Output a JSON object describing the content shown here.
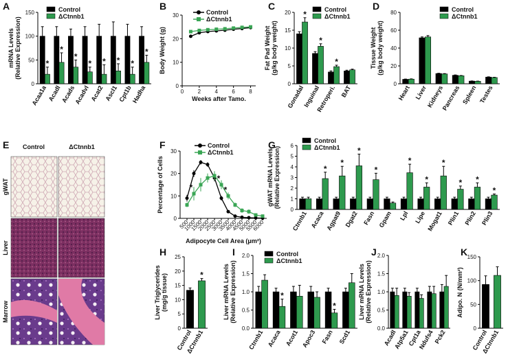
{
  "chart_data": [
    {
      "panel": "A",
      "type": "bar",
      "ylabel": [
        "mRNA Levels",
        "(Relative Expression)"
      ],
      "categories": [
        "Acaa1a",
        "Acadl",
        "Acads",
        "Acadvl",
        "Acat2",
        "Ascl1",
        "Cpt1b",
        "Hadha"
      ],
      "series": [
        {
          "name": "Control",
          "color": "#000000",
          "values": [
            100,
            100,
            100,
            100,
            100,
            100,
            100,
            100
          ],
          "errors": [
            20,
            20,
            15,
            20,
            25,
            30,
            25,
            20
          ]
        },
        {
          "name": "ΔCtnnb1",
          "color": "#2e9a4e",
          "values": [
            20,
            45,
            35,
            25,
            20,
            27,
            20,
            45
          ],
          "errors": [
            15,
            20,
            15,
            10,
            20,
            15,
            15,
            15
          ],
          "annotations": [
            "*",
            "*",
            "*",
            "*",
            "*",
            "*",
            "*",
            "*"
          ]
        }
      ],
      "ylim": [
        0,
        150
      ],
      "yticks": [
        0,
        50,
        100,
        150
      ],
      "legend": true
    },
    {
      "panel": "B",
      "type": "line",
      "ylabel": [
        "Body Weight (g)"
      ],
      "xlabel": "Weeks after Tamo.",
      "x": [
        1,
        2,
        3,
        4,
        5,
        6,
        7,
        8
      ],
      "series": [
        {
          "name": "Control",
          "color": "#000000",
          "marker": "circle",
          "values": [
            21,
            22.5,
            23,
            23.3,
            23.6,
            24,
            24.3,
            24.7
          ]
        },
        {
          "name": "ΔCtnnb1",
          "color": "#3aa655",
          "marker": "square",
          "values": [
            23,
            23.5,
            23.8,
            24,
            24.2,
            24.5,
            24.8,
            25
          ]
        }
      ],
      "xlim": [
        0,
        8.6
      ],
      "xticks": [
        0,
        2,
        4,
        6,
        8
      ],
      "ylim": [
        0,
        30
      ],
      "yticks": [
        0,
        10,
        20,
        30
      ],
      "legend": true
    },
    {
      "panel": "C",
      "type": "bar",
      "ylabel": [
        "Fat Pad Weight",
        "(g/kg body weight)"
      ],
      "categories": [
        "Gonadal",
        "Inguinal",
        "Retroperi.",
        "BAT"
      ],
      "series": [
        {
          "name": "Control",
          "color": "#000000",
          "values": [
            14,
            8.5,
            3.3,
            3.6
          ],
          "errors": [
            0.6,
            0.5,
            0.3,
            0.2
          ]
        },
        {
          "name": "ΔCtnnb1",
          "color": "#2e9a4e",
          "values": [
            17.3,
            10.5,
            4.8,
            3.9
          ],
          "errors": [
            1.2,
            0.7,
            0.4,
            0.2
          ],
          "annotations": [
            "*",
            "*",
            "*",
            null
          ]
        }
      ],
      "ylim": [
        0,
        20
      ],
      "yticks": [
        0,
        5,
        10,
        15,
        20
      ],
      "legend": true
    },
    {
      "panel": "D",
      "type": "bar",
      "ylabel": [
        "Tissue Weight",
        "(g/kg body weight)"
      ],
      "categories": [
        "Heart",
        "Liver",
        "Kidneys",
        "Pancreas",
        "Spleen",
        "Testes"
      ],
      "series": [
        {
          "name": "Control",
          "color": "#000000",
          "values": [
            5,
            51.5,
            11.5,
            9.5,
            3,
            7.5
          ],
          "errors": [
            0.3,
            1,
            0.3,
            0.4,
            0.2,
            0.3
          ]
        },
        {
          "name": "ΔCtnnb1",
          "color": "#2e9a4e",
          "values": [
            5.2,
            52.5,
            11,
            9,
            2.8,
            7
          ],
          "errors": [
            0.3,
            1.5,
            0.4,
            0.3,
            0.2,
            0.3
          ]
        }
      ],
      "ylim": [
        0,
        80
      ],
      "yticks": [
        0,
        20,
        40,
        60,
        80
      ],
      "legend": true
    },
    {
      "panel": "F",
      "type": "line",
      "ylabel": [
        "Percentage of Cells"
      ],
      "xlabel": "Adipocyte Cell Area (μm²)",
      "x": [
        500,
        1000,
        1500,
        2000,
        2500,
        3000,
        3500,
        4000,
        4500,
        5000,
        5500,
        6000
      ],
      "series": [
        {
          "name": "Control",
          "color": "#000000",
          "marker": "circle",
          "values": [
            9,
            20,
            25,
            24,
            18,
            9,
            3,
            1,
            0.5,
            0.3,
            0.2,
            0.1
          ],
          "errors": [
            1.5,
            1.5,
            1,
            1,
            1.5,
            1,
            0.5,
            0.3,
            0.2,
            0.1,
            0.1,
            0.1
          ]
        },
        {
          "name": "ΔCtnnb1",
          "color": "#3aa655",
          "marker": "square",
          "values": [
            6,
            11,
            15,
            18,
            19,
            15,
            10,
            6,
            3.5,
            3,
            1.5,
            1
          ],
          "errors": [
            1,
            3,
            3,
            2,
            2,
            2,
            1.5,
            1,
            1,
            1,
            0.5,
            0.5
          ],
          "annotations": [
            null,
            "*",
            null,
            null,
            null,
            "*",
            "*",
            null,
            null,
            null,
            null,
            null
          ]
        }
      ],
      "xlim": [
        0,
        6300
      ],
      "xticks": [
        500,
        1000,
        1500,
        2000,
        2500,
        3000,
        3500,
        4000,
        4500,
        5000,
        5500,
        6000
      ],
      "ylim": [
        0,
        30
      ],
      "yticks": [
        0,
        10,
        20,
        30
      ],
      "legend": true
    },
    {
      "panel": "G",
      "type": "bar",
      "ylabel": [
        "gWAT mRNA Levels",
        "(Relative Expression)"
      ],
      "categories": [
        "Ctnnb1",
        "Acaca",
        "Agpat9",
        "Dgat2",
        "Fasn",
        "Gpam",
        "Lpl",
        "Lipe",
        "Mogat1",
        "Plin1",
        "Plin2",
        "Plin3"
      ],
      "series": [
        {
          "name": "Control",
          "color": "#000000",
          "values": [
            1,
            1,
            1,
            1,
            1,
            1,
            1,
            1,
            1,
            1,
            1,
            1
          ],
          "errors": [
            0.15,
            0.15,
            0.15,
            0.15,
            0.15,
            0.15,
            0.15,
            0.15,
            0.15,
            0.15,
            0.15,
            0.15
          ]
        },
        {
          "name": "ΔCtnnb1",
          "color": "#2e9a4e",
          "values": [
            1,
            2.9,
            3.15,
            4.1,
            2.8,
            0.6,
            3.45,
            2.1,
            3.15,
            1.9,
            2.1,
            1.35
          ],
          "errors": [
            0.15,
            0.6,
            0.9,
            1.1,
            0.6,
            0.1,
            0.8,
            0.4,
            0.9,
            0.3,
            0.4,
            0.1
          ],
          "annotations": [
            null,
            "*",
            "*",
            "*",
            "*",
            null,
            "*",
            "*",
            "*",
            "*",
            "*",
            "*"
          ]
        }
      ],
      "ylim": [
        0,
        6
      ],
      "yticks": [
        0,
        1,
        2,
        3,
        4,
        5,
        6
      ],
      "legend": true
    },
    {
      "panel": "H",
      "type": "bar",
      "ylabel": [
        "Liver Triglycerides",
        "(mg/g tissue)"
      ],
      "categories": [
        "Control",
        "ΔCtnnb1"
      ],
      "values": [
        13.3,
        16.6
      ],
      "errors": [
        0.8,
        0.8
      ],
      "annotations": [
        null,
        "*"
      ],
      "colors": [
        "#000000",
        "#2e9a4e"
      ],
      "ylim": [
        0,
        25
      ],
      "yticks": [
        0,
        5,
        10,
        15,
        20,
        25
      ],
      "legend": false
    },
    {
      "panel": "I",
      "type": "bar",
      "ylabel": [
        "Liver mRNA Levels",
        "(Relative Expression)"
      ],
      "categories": [
        "Ctnnb1",
        "Acaca",
        "Acot1",
        "Apoc3",
        "Fasn",
        "Scd1"
      ],
      "series": [
        {
          "name": "Control",
          "color": "#000000",
          "values": [
            1,
            1,
            1,
            1,
            1,
            1
          ],
          "errors": [
            0.15,
            0.1,
            0.15,
            0.15,
            0.1,
            0.1
          ]
        },
        {
          "name": "ΔCtnnb1",
          "color": "#2e9a4e",
          "values": [
            1.32,
            0.6,
            0.88,
            0.85,
            0.42,
            1.25
          ],
          "errors": [
            0.15,
            0.2,
            0.3,
            0.15,
            0.1,
            0.25
          ],
          "annotations": [
            null,
            "*",
            null,
            null,
            "*",
            null
          ]
        }
      ],
      "ylim": [
        0,
        2
      ],
      "yticks": [
        {
          "value": 0,
          "label": "0.0"
        },
        0.5,
        {
          "value": 1,
          "label": "1.0"
        },
        1.5,
        {
          "value": 2,
          "label": "2.0"
        }
      ],
      "legend": true
    },
    {
      "panel": "J",
      "type": "bar",
      "ylabel": [
        "Liver mRNA Levels",
        "(Relative Expression)"
      ],
      "categories": [
        "Acadl",
        "Atp5a1",
        "Cpt1a",
        "Ndufs4",
        "Pck2"
      ],
      "series": [
        {
          "name": "Control",
          "color": "#000000",
          "values": [
            1,
            1,
            1,
            1,
            1
          ],
          "errors": [
            0.1,
            0.1,
            0.1,
            0.15,
            0.2
          ]
        },
        {
          "name": "ΔCtnnb1",
          "color": "#2e9a4e",
          "values": [
            0.9,
            0.88,
            0.82,
            0.95,
            1.15
          ],
          "errors": [
            0.2,
            0.1,
            0.1,
            0.2,
            0.3
          ]
        }
      ],
      "ylim": [
        0,
        2
      ],
      "yticks": [
        {
          "value": 0,
          "label": "0.0"
        },
        0.5,
        {
          "value": 1,
          "label": "1.0"
        },
        1.5,
        {
          "value": 2,
          "label": "2.0"
        }
      ],
      "legend": false
    },
    {
      "panel": "K",
      "type": "bar",
      "ylabel": [
        "Adipo. N (N/mm²)"
      ],
      "categories": [
        "Control",
        "ΔCtnnb1"
      ],
      "values": [
        92,
        111
      ],
      "errors": [
        18,
        18
      ],
      "colors": [
        "#000000",
        "#2e9a4e"
      ],
      "ylim": [
        0,
        150
      ],
      "yticks": [
        0,
        50,
        100,
        150
      ],
      "legend": false
    }
  ],
  "histology": {
    "panel": "E",
    "columns": [
      "Control",
      "ΔCtnnb1"
    ],
    "rows": [
      "gWAT",
      "Liver",
      "Marrow"
    ]
  }
}
